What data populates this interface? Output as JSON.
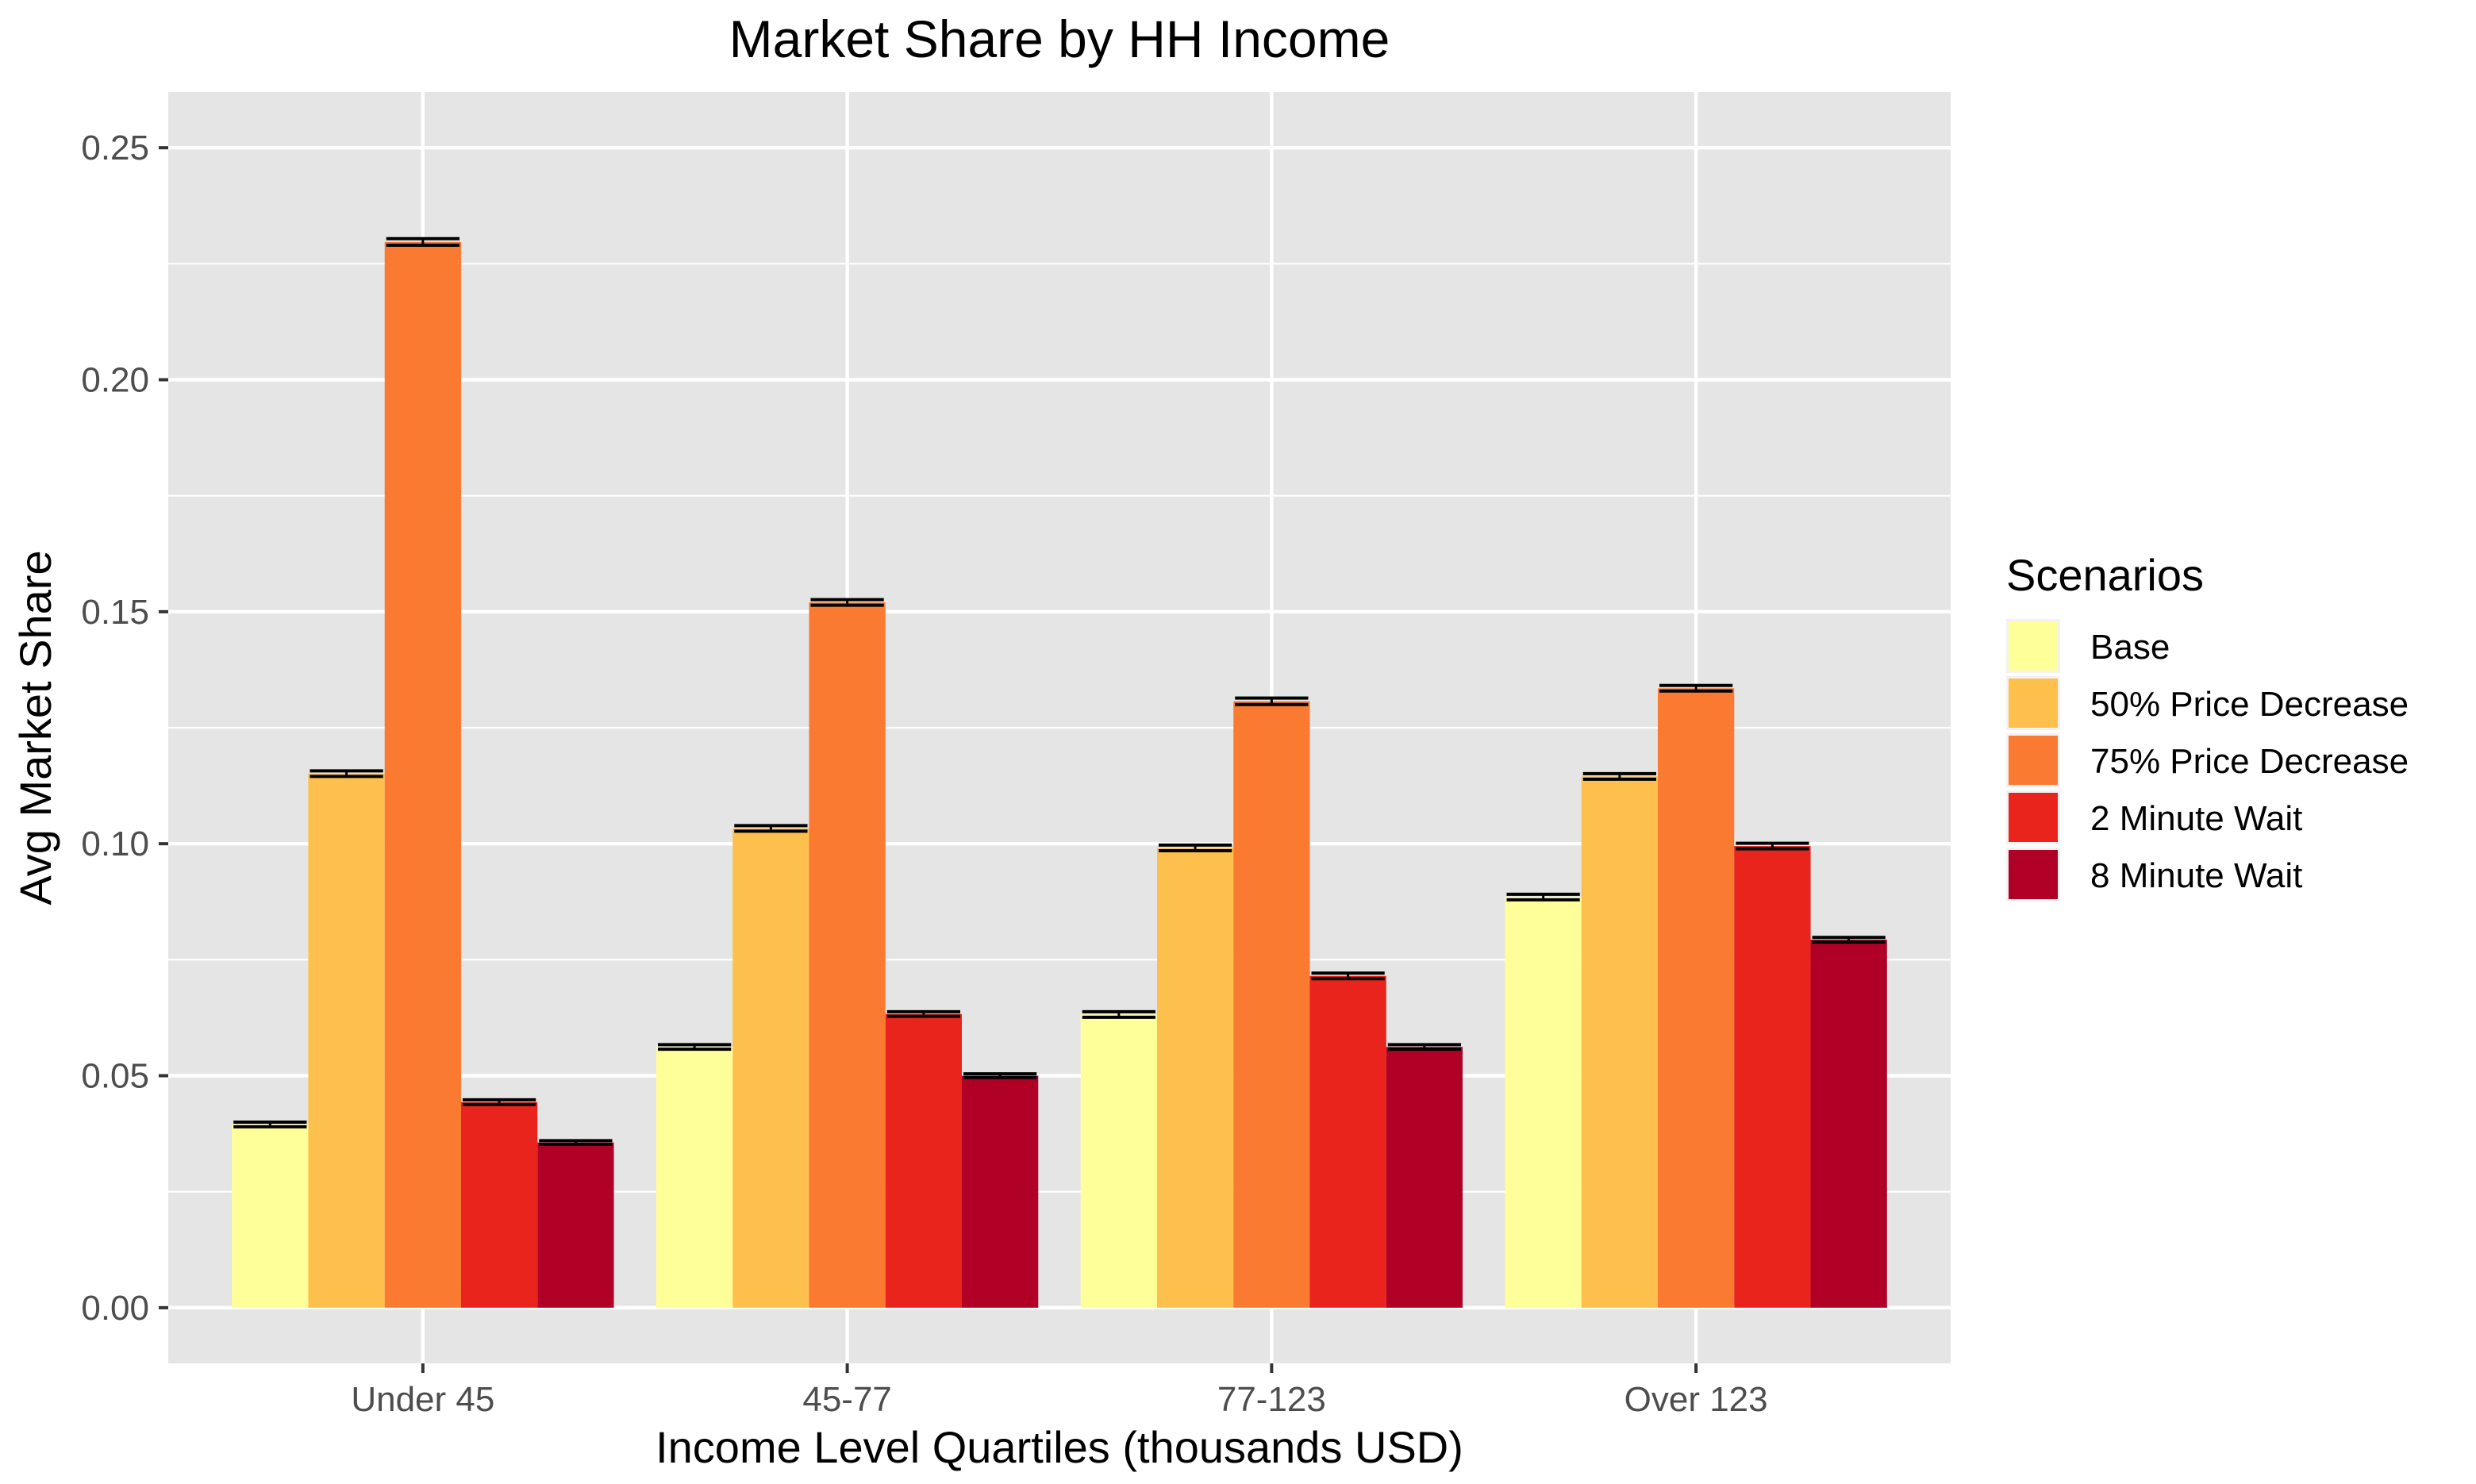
{
  "chart_data": {
    "type": "bar",
    "title": "Market Share by HH Income",
    "xlabel": "Income Level Quartiles (thousands USD)",
    "ylabel": "Avg Market Share",
    "categories": [
      "Under 45",
      "45-77",
      "77-123",
      "Over 123"
    ],
    "yticks": [
      "0.00",
      "0.05",
      "0.10",
      "0.15",
      "0.20",
      "0.25"
    ],
    "ylim": [
      -0.012,
      0.262
    ],
    "grid": true,
    "error_bars": true,
    "legend": {
      "title": "Scenarios",
      "position": "right"
    },
    "series": [
      {
        "name": "Base",
        "color": "#FFFF99",
        "values": [
          0.0395,
          0.0562,
          0.0632,
          0.0885
        ],
        "err": [
          0.0005,
          0.0005,
          0.0006,
          0.0006
        ]
      },
      {
        "name": "50% Price Decrease",
        "color": "#FEC04C",
        "values": [
          0.1151,
          0.1033,
          0.0991,
          0.1145
        ],
        "err": [
          0.0006,
          0.0006,
          0.0006,
          0.0006
        ]
      },
      {
        "name": "75% Price Decrease",
        "color": "#FA7A32",
        "values": [
          0.2297,
          0.152,
          0.1307,
          0.1335
        ],
        "err": [
          0.0007,
          0.0006,
          0.0007,
          0.0006
        ]
      },
      {
        "name": "2 Minute Wait",
        "color": "#E8241C",
        "values": [
          0.0443,
          0.0633,
          0.0715,
          0.0995
        ],
        "err": [
          0.0005,
          0.0005,
          0.0006,
          0.0006
        ]
      },
      {
        "name": "8 Minute Wait",
        "color": "#B00026",
        "values": [
          0.0356,
          0.05,
          0.0562,
          0.0793
        ],
        "err": [
          0.0004,
          0.0004,
          0.0005,
          0.0005
        ]
      }
    ]
  }
}
